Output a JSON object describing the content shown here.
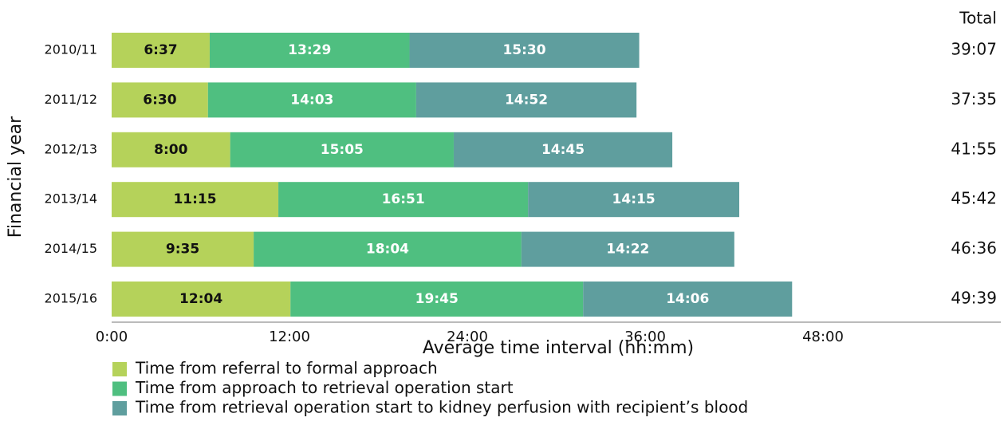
{
  "chart_data": {
    "type": "stacked-barh",
    "x_label": "Average time interval (hh:mm)",
    "y_label": "Financial year",
    "categories": [
      "2010/11",
      "2011/12",
      "2012/13",
      "2013/14",
      "2014/15",
      "2015/16"
    ],
    "series": [
      {
        "name": "Time from referral to formal approach",
        "color": "#b5d25a",
        "label_color": "#111111",
        "values": [
          6.6167,
          6.5,
          8,
          11.25,
          9.5833,
          12.0667
        ],
        "value_labels": [
          "6:37",
          "6:30",
          "8:00",
          "11:15",
          "9:35",
          "12:04"
        ]
      },
      {
        "name": "Time from approach to retrieval operation start",
        "color": "#4fbf80",
        "label_color": "#ffffff",
        "values": [
          13.4833,
          14.05,
          15.0833,
          16.85,
          18.0667,
          19.75
        ],
        "value_labels": [
          "13:29",
          "14:03",
          "15:05",
          "16:51",
          "18:04",
          "19:45"
        ]
      },
      {
        "name": "Time from retrieval operation start to kidney perfusion with recipient’s blood",
        "color": "#5f9e9e",
        "label_color": "#ffffff",
        "values": [
          15.5,
          14.8667,
          14.75,
          14.25,
          14.3667,
          14.1
        ],
        "value_labels": [
          "15:30",
          "14:52",
          "14:45",
          "14:15",
          "14:22",
          "14:06"
        ]
      }
    ],
    "total_header": "Total",
    "total_labels": [
      "39:07",
      "37:35",
      "41:55",
      "45:42",
      "46:36",
      "49:39"
    ],
    "xlim": [
      0,
      60
    ],
    "xticks": [
      {
        "value": 0,
        "label": "0:00"
      },
      {
        "value": 12,
        "label": "12:00"
      },
      {
        "value": 24,
        "label": "24:00"
      },
      {
        "value": 36,
        "label": "36:00"
      },
      {
        "value": 48,
        "label": "48:00"
      }
    ]
  }
}
